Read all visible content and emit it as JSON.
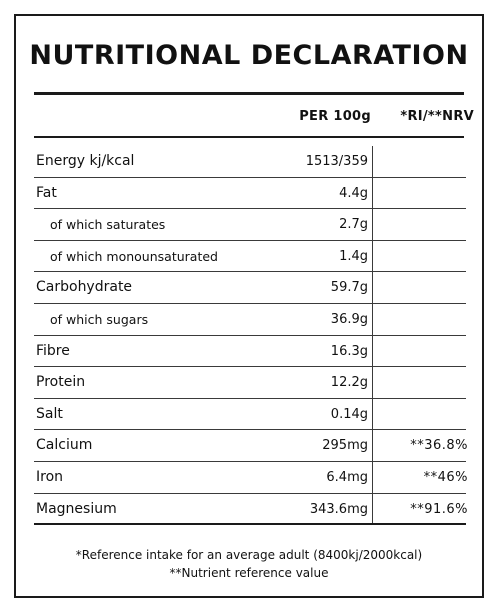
{
  "title": "NUTRITIONAL DECLARATION",
  "columns": {
    "per100g": "PER 100g",
    "ri": "*RI/**NRV"
  },
  "rows": [
    {
      "name": "Energy kj/kcal",
      "per100g": "1513/359",
      "ri": "",
      "sub": false
    },
    {
      "name": "Fat",
      "per100g": "4.4g",
      "ri": "",
      "sub": false
    },
    {
      "name": "of which saturates",
      "per100g": "2.7g",
      "ri": "",
      "sub": true
    },
    {
      "name": "of which monounsaturated",
      "per100g": "1.4g",
      "ri": "",
      "sub": true
    },
    {
      "name": "Carbohydrate",
      "per100g": "59.7g",
      "ri": "",
      "sub": false
    },
    {
      "name": "of which sugars",
      "per100g": "36.9g",
      "ri": "",
      "sub": true
    },
    {
      "name": "Fibre",
      "per100g": "16.3g",
      "ri": "",
      "sub": false
    },
    {
      "name": "Protein",
      "per100g": "12.2g",
      "ri": "",
      "sub": false
    },
    {
      "name": "Salt",
      "per100g": "0.14g",
      "ri": "",
      "sub": false
    },
    {
      "name": "Calcium",
      "per100g": "295mg",
      "ri": "**36.8%",
      "sub": false
    },
    {
      "name": "Iron",
      "per100g": "6.4mg",
      "ri": "**46%",
      "sub": false
    },
    {
      "name": "Magnesium",
      "per100g": "343.6mg",
      "ri": "**91.6%",
      "sub": false
    }
  ],
  "footnotes": {
    "ri": "*Reference intake for an average adult (8400kj/2000kcal)",
    "nrv": "**Nutrient reference value"
  }
}
